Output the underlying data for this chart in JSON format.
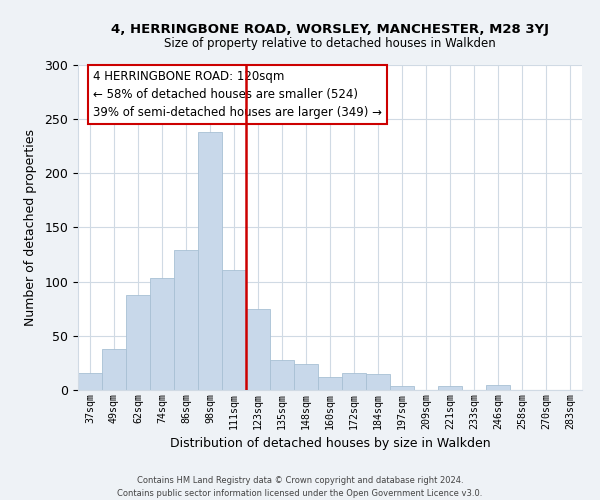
{
  "title": "4, HERRINGBONE ROAD, WORSLEY, MANCHESTER, M28 3YJ",
  "subtitle": "Size of property relative to detached houses in Walkden",
  "xlabel": "Distribution of detached houses by size in Walkden",
  "ylabel": "Number of detached properties",
  "bar_color": "#c8d8ea",
  "bar_edge_color": "#a8c0d4",
  "vline_color": "#cc0000",
  "vline_x": 6.5,
  "categories": [
    "37sqm",
    "49sqm",
    "62sqm",
    "74sqm",
    "86sqm",
    "98sqm",
    "111sqm",
    "123sqm",
    "135sqm",
    "148sqm",
    "160sqm",
    "172sqm",
    "184sqm",
    "197sqm",
    "209sqm",
    "221sqm",
    "233sqm",
    "246sqm",
    "258sqm",
    "270sqm",
    "283sqm"
  ],
  "values": [
    16,
    38,
    88,
    103,
    129,
    238,
    111,
    75,
    28,
    24,
    12,
    16,
    15,
    4,
    0,
    4,
    0,
    5,
    0,
    0,
    0
  ],
  "ylim": [
    0,
    300
  ],
  "yticks": [
    0,
    50,
    100,
    150,
    200,
    250,
    300
  ],
  "annotation_title": "4 HERRINGBONE ROAD: 120sqm",
  "annotation_line1": "← 58% of detached houses are smaller (524)",
  "annotation_line2": "39% of semi-detached houses are larger (349) →",
  "footer1": "Contains HM Land Registry data © Crown copyright and database right 2024.",
  "footer2": "Contains public sector information licensed under the Open Government Licence v3.0.",
  "bg_color": "#eef2f6",
  "plot_bg_color": "#ffffff",
  "grid_color": "#d0dae4"
}
